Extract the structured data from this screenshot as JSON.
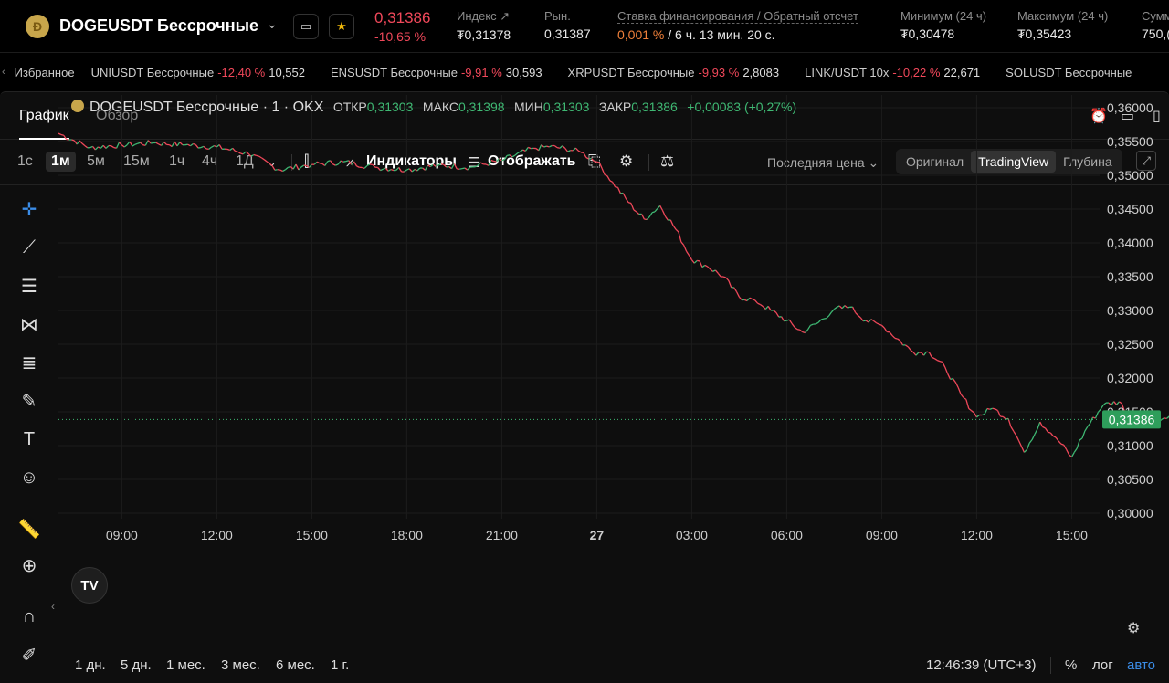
{
  "header": {
    "logo_glyph": "Ð",
    "symbol": "DOGEUSDT Бессрочные",
    "last_price": "0,31386",
    "change_pct": "-10,65 %",
    "stats": [
      {
        "label": "Индекс ↗",
        "value": "₮0,31378"
      },
      {
        "label": "Рын.",
        "value": "0,31387"
      },
      {
        "label": "Ставка финансирования / Обратный отсчет",
        "value_rate": "0,001 %",
        "value_rest": " / 6 ч. 13 мин. 20 с."
      },
      {
        "label": "Минимум (24 ч)",
        "value": "₮0,30478"
      },
      {
        "label": "Максимум (24 ч)",
        "value": "₮0,35423"
      },
      {
        "label": "Сумм",
        "value": "750,("
      }
    ]
  },
  "ticker": {
    "favorites_label": "Избранное",
    "items": [
      {
        "name": "UNIUSDT Бессрочные",
        "change": "-12,40 %",
        "price": "10,552"
      },
      {
        "name": "ENSUSDT Бессрочные",
        "change": "-9,91 %",
        "price": "30,593"
      },
      {
        "name": "XRPUSDT Бессрочные",
        "change": "-9,93 %",
        "price": "2,8083"
      },
      {
        "name": "LINK/USDT 10x",
        "change": "-10,22 %",
        "price": "22,671"
      },
      {
        "name": "SOLUSDT Бессрочные",
        "change": "",
        "price": ""
      }
    ]
  },
  "tabs": {
    "chart": "График",
    "overview": "Обзор"
  },
  "toolbar": {
    "timeframes": [
      "1с",
      "1м",
      "5м",
      "15м",
      "1ч",
      "4ч",
      "1Д"
    ],
    "active_timeframe": "1м",
    "indicators": "Индикаторы",
    "display": "Отображать",
    "price_select": "Последняя цена",
    "modes": [
      "Оригинал",
      "TradingView",
      "Глубина"
    ],
    "active_mode": "TradingView"
  },
  "legend": {
    "title": "DOGEUSDT Бессрочные · 1 · OKX",
    "open_label": "ОТКР",
    "open": "0,31303",
    "high_label": "МАКС",
    "high": "0,31398",
    "low_label": "МИН",
    "low": "0,31303",
    "close_label": "ЗАКР",
    "close": "0,31386",
    "change": "+0,00083 (+0,27%)"
  },
  "bottom": {
    "ranges": [
      "1 дн.",
      "5 дн.",
      "1 мес.",
      "3 мес.",
      "6 мес.",
      "1 г."
    ],
    "clock": "12:46:39 (UTC+3)",
    "percent": "%",
    "log": "лог",
    "auto": "авто"
  },
  "chart_data": {
    "type": "line",
    "y_ticks": [
      "0,36000",
      "0,35500",
      "0,35000",
      "0,34500",
      "0,34000",
      "0,33500",
      "0,33000",
      "0,32500",
      "0,32000",
      "0,31500",
      "0,31000",
      "0,30500",
      "0,30000"
    ],
    "x_ticks": [
      "09:00",
      "12:00",
      "15:00",
      "18:00",
      "21:00",
      "27",
      "03:00",
      "06:00",
      "09:00",
      "12:00",
      "15:00"
    ],
    "ylim": [
      0.3,
      0.36
    ],
    "current_price_label": "0,31386",
    "current_price": 0.31386,
    "up_color": "#3fb873",
    "down_color": "#f0485a",
    "path_hours": [
      0,
      1,
      2,
      3,
      4,
      5,
      6,
      7,
      8,
      9,
      10,
      11,
      12,
      13,
      14,
      15,
      15.5,
      16,
      16.5,
      17,
      17.5,
      18,
      18.5,
      19,
      19.5,
      20,
      20.5,
      21,
      21.5,
      22,
      22.5,
      23,
      23.5,
      24,
      24.5,
      25,
      25.5,
      26,
      26.5,
      27,
      27.5,
      28,
      28.5,
      29,
      29.5,
      30,
      30.5,
      31,
      31.5,
      32,
      32.5,
      33,
      33.5,
      34,
      34.5,
      35,
      35.5
    ],
    "path_prices": [
      0.3562,
      0.3541,
      0.3545,
      0.3548,
      0.3545,
      0.3542,
      0.3532,
      0.3508,
      0.3516,
      0.352,
      0.3512,
      0.3508,
      0.3515,
      0.3512,
      0.3522,
      0.354,
      0.3542,
      0.354,
      0.3534,
      0.352,
      0.349,
      0.346,
      0.3435,
      0.3455,
      0.342,
      0.3375,
      0.3365,
      0.335,
      0.332,
      0.3315,
      0.33,
      0.3285,
      0.3268,
      0.3282,
      0.3302,
      0.3305,
      0.3285,
      0.3278,
      0.3258,
      0.3238,
      0.3238,
      0.3216,
      0.3176,
      0.3142,
      0.3155,
      0.314,
      0.309,
      0.3135,
      0.3112,
      0.3083,
      0.3128,
      0.316,
      0.3165,
      0.3135,
      0.313,
      0.314,
      0.3135
    ]
  }
}
